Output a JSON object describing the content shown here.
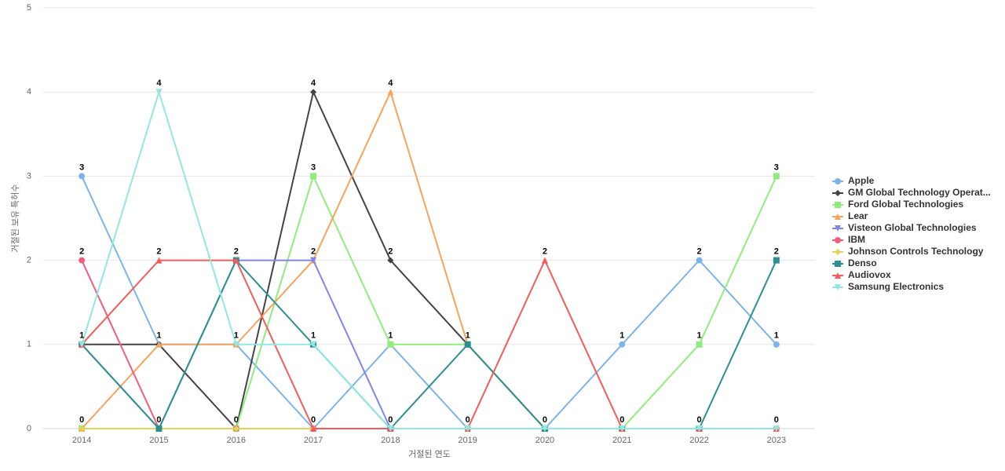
{
  "chart_data": {
    "type": "line",
    "x_label": "거절된 연도",
    "y_label": "거절된 보유 특허수",
    "categories": [
      "2014",
      "2015",
      "2016",
      "2017",
      "2018",
      "2019",
      "2020",
      "2021",
      "2022",
      "2023"
    ],
    "ylim": [
      0,
      5
    ],
    "yticks": [
      0,
      1,
      2,
      3,
      4,
      5
    ],
    "grid": true,
    "legend": "right",
    "series": [
      {
        "name": "Apple",
        "color": "#7cb5ec",
        "marker": "circle",
        "values": [
          3,
          1,
          1,
          0,
          1,
          0,
          0,
          1,
          2,
          1
        ]
      },
      {
        "name": "GM Global Technology Operat...",
        "color": "#434348",
        "marker": "diamond",
        "values": [
          1,
          1,
          0,
          4,
          2,
          1,
          0,
          0,
          0,
          0
        ]
      },
      {
        "name": "Ford Global Technologies",
        "color": "#90ed7d",
        "marker": "square",
        "values": [
          0,
          0,
          0,
          3,
          1,
          1,
          0,
          0,
          1,
          3
        ]
      },
      {
        "name": "Lear",
        "color": "#f7a35c",
        "marker": "triangle",
        "values": [
          0,
          1,
          1,
          2,
          4,
          1,
          0,
          0,
          0,
          0
        ]
      },
      {
        "name": "Visteon Global Technologies",
        "color": "#8085e9",
        "marker": "triangle-down",
        "values": [
          1,
          0,
          2,
          2,
          0,
          0,
          0,
          0,
          0,
          0
        ]
      },
      {
        "name": "IBM",
        "color": "#f15c80",
        "marker": "circle",
        "values": [
          2,
          0,
          0,
          0,
          0,
          0,
          0,
          0,
          0,
          0
        ]
      },
      {
        "name": "Johnson Controls Technology",
        "color": "#e4d354",
        "marker": "diamond",
        "values": [
          0,
          0,
          0,
          0,
          0,
          0,
          0,
          0,
          0,
          0
        ]
      },
      {
        "name": "Denso",
        "color": "#2b908f",
        "marker": "square",
        "values": [
          1,
          0,
          2,
          1,
          0,
          1,
          0,
          0,
          0,
          2
        ]
      },
      {
        "name": "Audiovox",
        "color": "#f45b5b",
        "marker": "triangle",
        "values": [
          1,
          2,
          2,
          0,
          0,
          0,
          2,
          0,
          0,
          0
        ]
      },
      {
        "name": "Samsung Electronics",
        "color": "#91e8e1",
        "marker": "triangle-down",
        "values": [
          1,
          4,
          1,
          1,
          0,
          0,
          0,
          0,
          0,
          0
        ]
      }
    ]
  }
}
